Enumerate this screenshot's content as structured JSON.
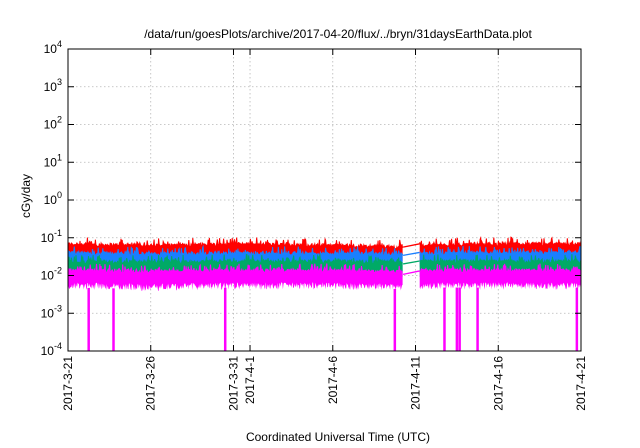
{
  "chart_data": {
    "type": "line",
    "title": "/data/run/goesPlots/archive/2017-04-20/flux/../bryn/31daysEarthData.plot",
    "xlabel": "Coordinated Universal Time (UTC)",
    "ylabel": "cGy/day",
    "yscale": "log",
    "ylim": [
      0.0001,
      10000
    ],
    "xlim": [
      "2017-03-21",
      "2017-04-21"
    ],
    "grid": true,
    "legend": "none",
    "y_ticks": [
      {
        "value": 0.0001,
        "base": "10",
        "exp": "-4"
      },
      {
        "value": 0.001,
        "base": "10",
        "exp": "-3"
      },
      {
        "value": 0.01,
        "base": "10",
        "exp": "-2"
      },
      {
        "value": 0.1,
        "base": "10",
        "exp": "-1"
      },
      {
        "value": 1,
        "base": "10",
        "exp": "0"
      },
      {
        "value": 10,
        "base": "10",
        "exp": "1"
      },
      {
        "value": 100,
        "base": "10",
        "exp": "2"
      },
      {
        "value": 1000,
        "base": "10",
        "exp": "3"
      },
      {
        "value": 10000,
        "base": "10",
        "exp": "4"
      }
    ],
    "x_ticks": [
      {
        "value": "2017-03-21",
        "label": "2017-3-21"
      },
      {
        "value": "2017-03-26",
        "label": "2017-3-26"
      },
      {
        "value": "2017-03-31",
        "label": "2017-3-31"
      },
      {
        "value": "2017-04-01",
        "label": "2017-4-1"
      },
      {
        "value": "2017-04-06",
        "label": "2017-4-6"
      },
      {
        "value": "2017-04-11",
        "label": "2017-4-11"
      },
      {
        "value": "2017-04-16",
        "label": "2017-4-16"
      },
      {
        "value": "2017-04-21",
        "label": "2017-4-21"
      }
    ],
    "data_gap": [
      "2017-04-10T06:00",
      "2017-04-11T06:00"
    ],
    "series": [
      {
        "color": "#ff0000",
        "x": [
          "2017-03-21",
          "2017-03-26",
          "2017-03-31",
          "2017-04-06",
          "2017-04-10",
          "2017-04-11",
          "2017-04-16",
          "2017-04-21"
        ],
        "values": [
          0.06,
          0.055,
          0.06,
          0.055,
          0.05,
          0.055,
          0.06,
          0.06
        ]
      },
      {
        "color": "#1a7fff",
        "x": [
          "2017-03-21",
          "2017-03-26",
          "2017-03-31",
          "2017-04-06",
          "2017-04-10",
          "2017-04-11",
          "2017-04-16",
          "2017-04-21"
        ],
        "values": [
          0.035,
          0.033,
          0.034,
          0.034,
          0.032,
          0.034,
          0.035,
          0.035
        ]
      },
      {
        "color": "#00aa66",
        "x": [
          "2017-03-21",
          "2017-03-26",
          "2017-03-31",
          "2017-04-06",
          "2017-04-10",
          "2017-04-11",
          "2017-04-16",
          "2017-04-21"
        ],
        "values": [
          0.02,
          0.02,
          0.021,
          0.021,
          0.02,
          0.021,
          0.021,
          0.021
        ]
      },
      {
        "color": "#ff00ff",
        "x": [
          "2017-03-21",
          "2017-03-26",
          "2017-03-31",
          "2017-04-06",
          "2017-04-10",
          "2017-04-11",
          "2017-04-16",
          "2017-04-21"
        ],
        "values": [
          0.012,
          0.011,
          0.012,
          0.012,
          0.011,
          0.012,
          0.012,
          0.012
        ],
        "dropouts": [
          "2017-03-22T06:00",
          "2017-03-23T18:00",
          "2017-03-30T12:00",
          "2017-04-09T18:00",
          "2017-04-12T18:00",
          "2017-04-13T12:00",
          "2017-04-13T16:00",
          "2017-04-14T18:00",
          "2017-04-20T18:00"
        ]
      }
    ]
  }
}
